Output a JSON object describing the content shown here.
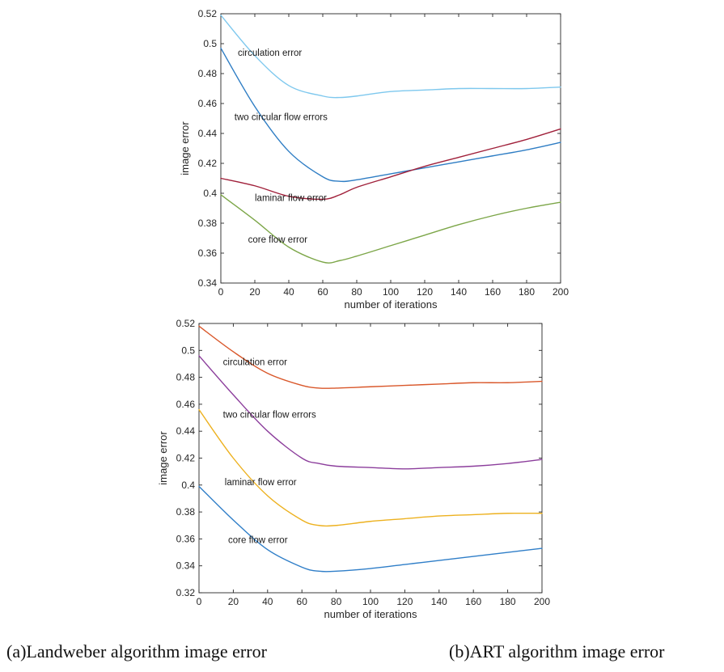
{
  "chart_data": [
    {
      "type": "line",
      "title": "",
      "xlabel": "number of iterations",
      "ylabel": "image error",
      "xlim": [
        0,
        200
      ],
      "ylim": [
        0.34,
        0.52
      ],
      "xticks": [
        0,
        20,
        40,
        60,
        80,
        100,
        120,
        140,
        160,
        180,
        200
      ],
      "yticks": [
        0.34,
        0.36,
        0.38,
        0.4,
        0.42,
        0.44,
        0.46,
        0.48,
        0.5,
        0.52
      ],
      "x": [
        0,
        20,
        40,
        60,
        70,
        80,
        100,
        120,
        140,
        160,
        180,
        200
      ],
      "grid": false,
      "legend": "none",
      "series": [
        {
          "name": "circulation error",
          "color": "#7ec8ee",
          "values": [
            0.519,
            0.492,
            0.472,
            0.465,
            0.464,
            0.465,
            0.468,
            0.469,
            0.47,
            0.47,
            0.47,
            0.471
          ]
        },
        {
          "name": "two circular flow errors",
          "color": "#2e7dc4",
          "values": [
            0.497,
            0.458,
            0.428,
            0.411,
            0.408,
            0.409,
            0.413,
            0.417,
            0.421,
            0.425,
            0.429,
            0.434
          ]
        },
        {
          "name": "laminar flow error",
          "color": "#a0203a",
          "values": [
            0.41,
            0.405,
            0.398,
            0.396,
            0.399,
            0.404,
            0.411,
            0.418,
            0.424,
            0.43,
            0.436,
            0.443
          ]
        },
        {
          "name": "core flow error",
          "color": "#7ca648",
          "values": [
            0.399,
            0.382,
            0.364,
            0.354,
            0.355,
            0.358,
            0.365,
            0.372,
            0.379,
            0.385,
            0.39,
            0.394
          ]
        }
      ],
      "annotations": [
        {
          "text": "circulation error",
          "x": 10,
          "y": 0.492
        },
        {
          "text": "two circular flow errors",
          "x": 8,
          "y": 0.449
        },
        {
          "text": "laminar flow error",
          "x": 20,
          "y": 0.395
        },
        {
          "text": "core flow error",
          "x": 16,
          "y": 0.367
        }
      ]
    },
    {
      "type": "line",
      "title": "",
      "xlabel": "number of iterations",
      "ylabel": "image error",
      "xlim": [
        0,
        200
      ],
      "ylim": [
        0.32,
        0.52
      ],
      "xticks": [
        0,
        20,
        40,
        60,
        80,
        100,
        120,
        140,
        160,
        180,
        200
      ],
      "yticks": [
        0.32,
        0.34,
        0.36,
        0.38,
        0.4,
        0.42,
        0.44,
        0.46,
        0.48,
        0.5,
        0.52
      ],
      "x": [
        0,
        20,
        40,
        60,
        70,
        80,
        100,
        120,
        140,
        160,
        180,
        200
      ],
      "grid": false,
      "legend": "none",
      "series": [
        {
          "name": "circulation error",
          "color": "#d9572a",
          "values": [
            0.518,
            0.499,
            0.483,
            0.474,
            0.472,
            0.472,
            0.473,
            0.474,
            0.475,
            0.476,
            0.476,
            0.477
          ]
        },
        {
          "name": "two circular flow errors",
          "color": "#8c3e9c",
          "values": [
            0.496,
            0.467,
            0.44,
            0.42,
            0.416,
            0.414,
            0.413,
            0.412,
            0.413,
            0.414,
            0.416,
            0.419
          ]
        },
        {
          "name": "laminar flow error",
          "color": "#edb11f",
          "values": [
            0.456,
            0.42,
            0.392,
            0.374,
            0.37,
            0.37,
            0.373,
            0.375,
            0.377,
            0.378,
            0.379,
            0.379
          ]
        },
        {
          "name": "core flow error",
          "color": "#2f7ec8",
          "values": [
            0.399,
            0.374,
            0.352,
            0.339,
            0.336,
            0.336,
            0.338,
            0.341,
            0.344,
            0.347,
            0.35,
            0.353
          ]
        }
      ],
      "annotations": [
        {
          "text": "circulation error",
          "x": 14,
          "y": 0.489
        },
        {
          "text": "two circular flow errors",
          "x": 14,
          "y": 0.45
        },
        {
          "text": "laminar flow error",
          "x": 15,
          "y": 0.4
        },
        {
          "text": "core flow error",
          "x": 17,
          "y": 0.357
        }
      ]
    }
  ],
  "captions": {
    "a": "(a)Landweber algorithm image error",
    "b": "(b)ART algorithm image error"
  }
}
